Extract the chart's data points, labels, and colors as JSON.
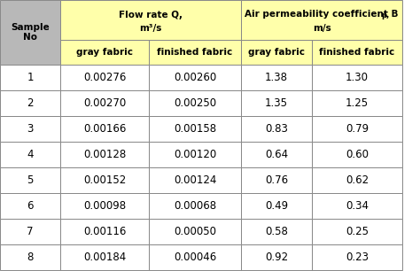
{
  "sample_nos": [
    "1",
    "2",
    "3",
    "4",
    "5",
    "6",
    "7",
    "8"
  ],
  "flow_gray": [
    "0.00276",
    "0.00270",
    "0.00166",
    "0.00128",
    "0.00152",
    "0.00098",
    "0.00116",
    "0.00184"
  ],
  "flow_finished": [
    "0.00260",
    "0.00250",
    "0.00158",
    "0.00120",
    "0.00124",
    "0.00068",
    "0.00050",
    "0.00046"
  ],
  "perm_gray": [
    "1.38",
    "1.35",
    "0.83",
    "0.64",
    "0.76",
    "0.49",
    "0.58",
    "0.92"
  ],
  "perm_finished": [
    "1.30",
    "1.25",
    "0.79",
    "0.60",
    "0.62",
    "0.34",
    "0.25",
    "0.23"
  ],
  "bg_yellow": "#FFFFAA",
  "bg_gray": "#B8B8B8",
  "bg_white": "#FFFFFF",
  "border_color": "#888888",
  "text_color": "#000000",
  "fig_width": 4.74,
  "fig_height": 3.06,
  "dpi": 100
}
